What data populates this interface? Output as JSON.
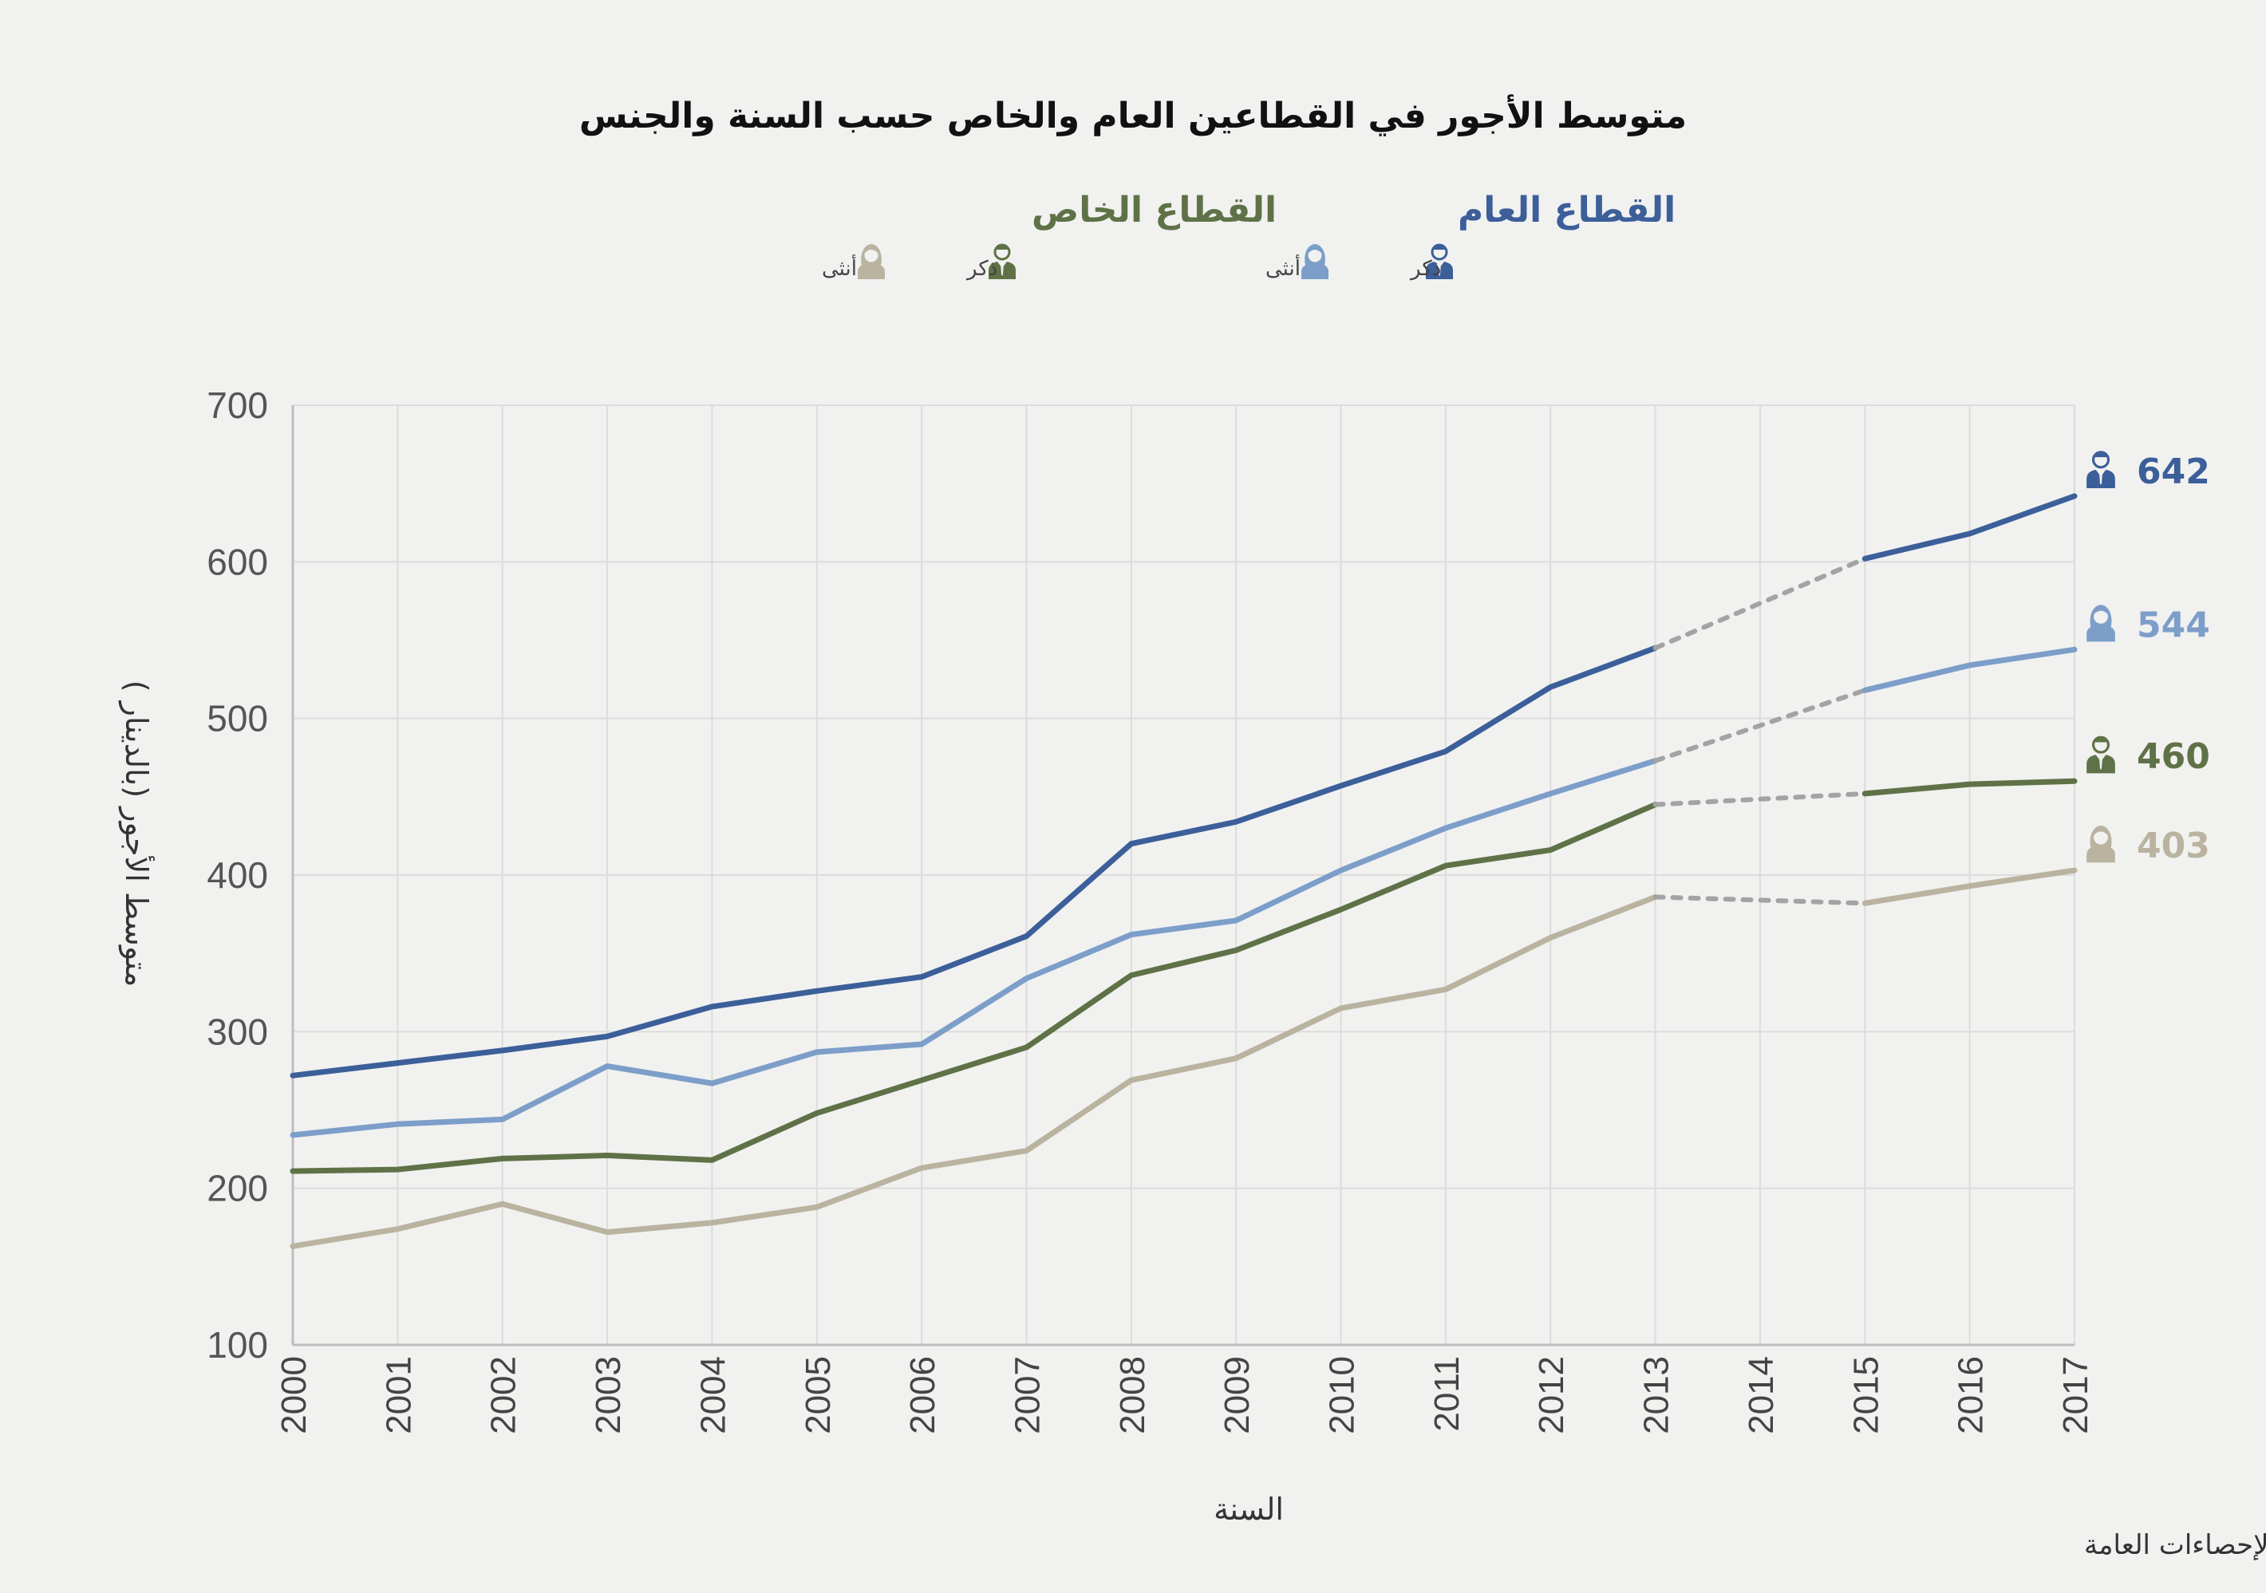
{
  "title": "متوسط الأجور في القطاعين العام والخاص حسب السنة والجنس",
  "legend": {
    "public": {
      "label": "القطاع العام",
      "male": "ذكر",
      "female": "أنثى"
    },
    "private": {
      "label": "القطاع الخاص",
      "male": "ذكر",
      "female": "أنثى"
    }
  },
  "source": "المصدر: دائرة الإحصاءات العامة",
  "colors": {
    "public_male": "#3c5f9a",
    "public_female": "#7c9ec9",
    "private_male": "#5f7247",
    "private_female": "#b9b3a0",
    "projection": "#a3a3a3",
    "grid": "#dcdcdc"
  },
  "chart_data": {
    "type": "line",
    "title": "متوسط الأجور في القطاعين العام والخاص حسب السنة والجنس",
    "xlabel": "السنة",
    "ylabel": "متوسط الأجور (بالدينار )",
    "ylim": [
      100,
      700
    ],
    "yticks": [
      100,
      200,
      300,
      400,
      500,
      600,
      700
    ],
    "categories": [
      "2000",
      "2001",
      "2002",
      "2003",
      "2004",
      "2005",
      "2006",
      "2007",
      "2008",
      "2009",
      "2010",
      "2011",
      "2012",
      "2013",
      "2014",
      "2015",
      "2016",
      "2017"
    ],
    "grid": true,
    "series": [
      {
        "key": "public_male",
        "icon": "male-icon",
        "values": [
          272,
          280,
          288,
          297,
          316,
          326,
          335,
          361,
          420,
          434,
          457,
          479,
          520,
          545,
          null,
          602,
          618,
          642
        ],
        "end_label": "642"
      },
      {
        "key": "public_female",
        "icon": "female-icon",
        "values": [
          234,
          241,
          244,
          278,
          267,
          287,
          292,
          334,
          362,
          371,
          403,
          430,
          452,
          473,
          null,
          518,
          534,
          544
        ],
        "end_label": "544"
      },
      {
        "key": "private_male",
        "icon": "male-icon",
        "values": [
          211,
          212,
          219,
          221,
          218,
          248,
          269,
          290,
          336,
          352,
          378,
          406,
          416,
          445,
          null,
          452,
          458,
          460
        ],
        "end_label": "460"
      },
      {
        "key": "private_female",
        "icon": "female-icon",
        "values": [
          163,
          174,
          190,
          172,
          178,
          188,
          213,
          224,
          269,
          283,
          315,
          327,
          360,
          386,
          null,
          382,
          393,
          403
        ],
        "end_label": "403"
      }
    ]
  }
}
